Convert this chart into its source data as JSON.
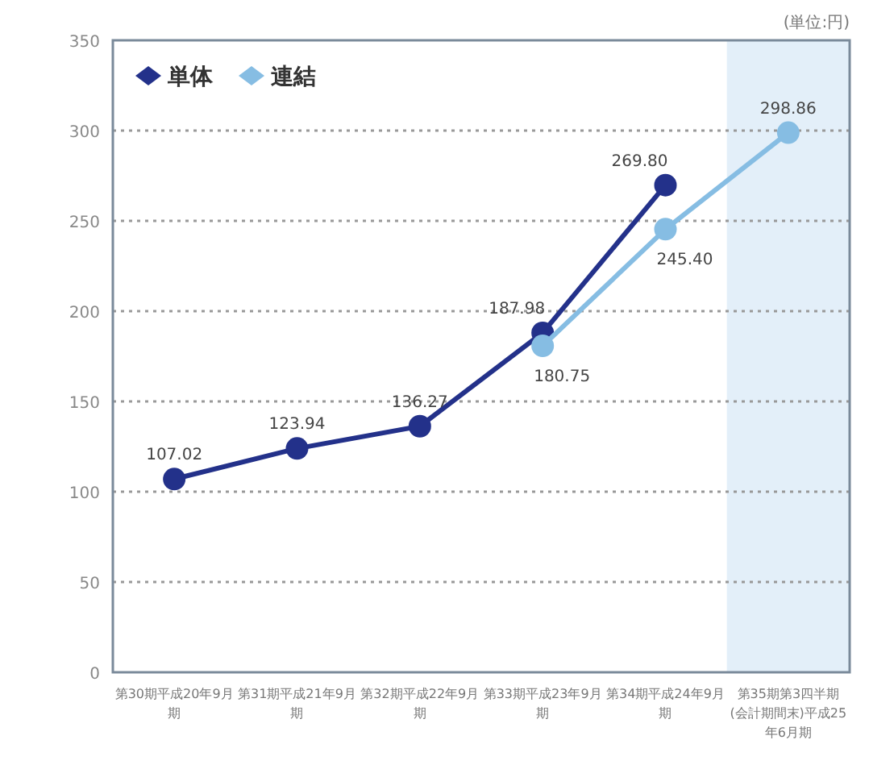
{
  "chart_data": {
    "type": "line",
    "annotations": [
      "(単位:円)"
    ],
    "categories": [
      "第30期平成20年9月期",
      "第31期平成21年9月期",
      "第32期平成22年9月期",
      "第33期平成23年9月期",
      "第34期平成24年9月期",
      "第35期第3四半期(会計期間末)平成25年6月期"
    ],
    "series": [
      {
        "name": "単体",
        "color": "#23318a",
        "values": [
          107.02,
          123.94,
          136.27,
          187.98,
          269.8,
          null
        ],
        "value_labels": [
          "107.02",
          "123.94",
          "136.27",
          "187.98",
          "269.80",
          null
        ]
      },
      {
        "name": "連結",
        "color": "#86bde3",
        "values": [
          null,
          null,
          null,
          180.75,
          245.4,
          298.86
        ],
        "value_labels": [
          null,
          null,
          null,
          "180.75",
          "245.40",
          "298.86"
        ]
      }
    ],
    "ylim": [
      0,
      350
    ],
    "yticks": [
      0,
      50,
      100,
      150,
      200,
      250,
      300,
      350
    ],
    "grid": "y",
    "line_style": "solid",
    "marker": "circle",
    "legend": "top left",
    "bands": [
      {
        "axis": "x",
        "from": "第35期第3四半期(会計期間末)平成25年6月期",
        "to": "第35期第3四半期(会計期間末)平成25年6月期",
        "color": "#e3eff9"
      }
    ]
  }
}
